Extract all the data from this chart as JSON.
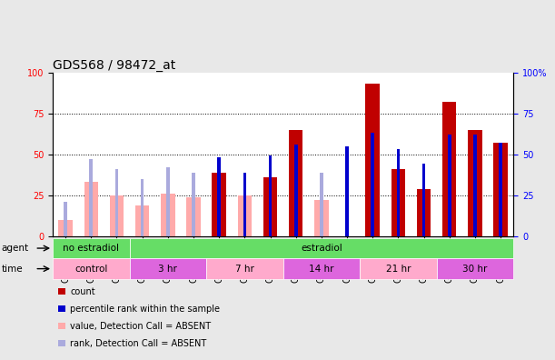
{
  "title": "GDS568 / 98472_at",
  "samples": [
    "GSM9635",
    "GSM9636",
    "GSM9637",
    "GSM9604",
    "GSM9638",
    "GSM9639",
    "GSM9640",
    "GSM9641",
    "GSM9642",
    "GSM9643",
    "GSM9644",
    "GSM9645",
    "GSM9646",
    "GSM9647",
    "GSM9648",
    "GSM9649",
    "GSM9650",
    "GSM9651"
  ],
  "count_values": [
    null,
    null,
    null,
    null,
    null,
    null,
    39,
    null,
    36,
    65,
    null,
    null,
    93,
    41,
    29,
    82,
    65,
    57
  ],
  "count_absent": [
    10,
    33,
    25,
    19,
    26,
    24,
    null,
    25,
    null,
    null,
    22,
    null,
    null,
    null,
    null,
    null,
    null,
    null
  ],
  "rank_values": [
    null,
    null,
    null,
    null,
    null,
    null,
    48,
    39,
    49,
    56,
    null,
    55,
    63,
    53,
    44,
    62,
    62,
    57
  ],
  "rank_absent": [
    21,
    47,
    41,
    35,
    42,
    39,
    null,
    null,
    null,
    null,
    39,
    null,
    null,
    null,
    null,
    null,
    null,
    null
  ],
  "bar_color_present": "#C00000",
  "bar_color_absent": "#FFAAAA",
  "rank_color_present": "#0000CC",
  "rank_color_absent": "#AAAADD",
  "ylim": [
    0,
    100
  ],
  "yticks": [
    0,
    25,
    50,
    75,
    100
  ],
  "background_color": "#E8E8E8",
  "plot_bg": "#FFFFFF",
  "title_fontsize": 10,
  "tick_fontsize": 7,
  "agent_green": "#66DD66",
  "time_pink": "#FFAACC",
  "time_purple": "#DD66DD",
  "legend_items": [
    {
      "color": "#C00000",
      "label": "count"
    },
    {
      "color": "#0000CC",
      "label": "percentile rank within the sample"
    },
    {
      "color": "#FFAAAA",
      "label": "value, Detection Call = ABSENT"
    },
    {
      "color": "#AAAADD",
      "label": "rank, Detection Call = ABSENT"
    }
  ]
}
